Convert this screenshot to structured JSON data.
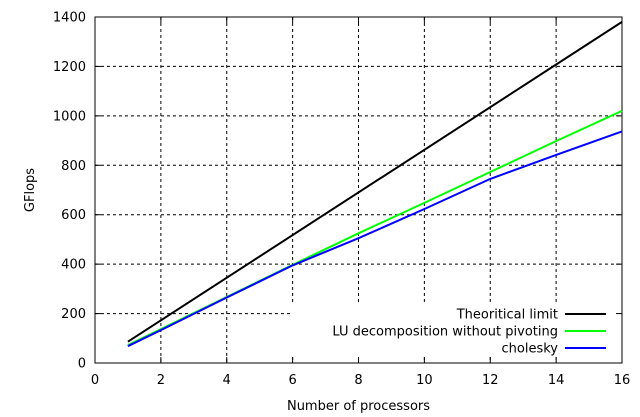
{
  "chart_data": {
    "type": "line",
    "title": "",
    "xlabel": "Number of processors",
    "ylabel": "GFlops",
    "xlim": [
      0,
      16
    ],
    "ylim": [
      0,
      1400
    ],
    "xticks": [
      0,
      2,
      4,
      6,
      8,
      10,
      12,
      14,
      16
    ],
    "yticks": [
      0,
      200,
      400,
      600,
      800,
      1000,
      1200,
      1400
    ],
    "grid": true,
    "legend_position": "bottom-right",
    "series": [
      {
        "name": "Theoritical limit",
        "color": "#000000",
        "x": [
          1,
          16
        ],
        "y": [
          86,
          1380
        ]
      },
      {
        "name": "LU decomposition without pivoting",
        "color": "#00ff00",
        "x": [
          1,
          2,
          4,
          6,
          8,
          10,
          12,
          14,
          16
        ],
        "y": [
          72,
          137,
          267,
          397,
          525,
          648,
          773,
          898,
          1020
        ]
      },
      {
        "name": "cholesky",
        "color": "#0000ff",
        "x": [
          1,
          2,
          4,
          6,
          8,
          10,
          12,
          14,
          16
        ],
        "y": [
          68,
          133,
          265,
          395,
          505,
          623,
          745,
          842,
          937
        ]
      }
    ]
  }
}
